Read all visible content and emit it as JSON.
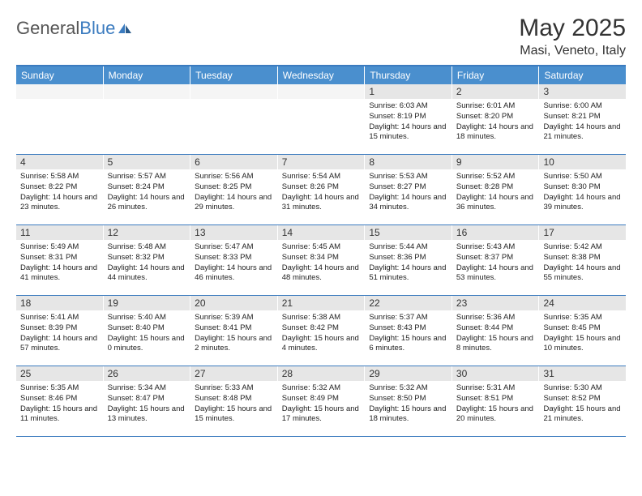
{
  "logo": {
    "part1": "General",
    "part2": "Blue"
  },
  "title": "May 2025",
  "location": "Masi, Veneto, Italy",
  "weekdays": [
    "Sunday",
    "Monday",
    "Tuesday",
    "Wednesday",
    "Thursday",
    "Friday",
    "Saturday"
  ],
  "colors": {
    "header_bg": "#4a8fce",
    "border": "#3b7bbf",
    "daynum_bg": "#e6e6e6"
  },
  "typography": {
    "title_fontsize": 30,
    "location_fontsize": 16,
    "weekday_fontsize": 12,
    "daynum_fontsize": 12,
    "detail_fontsize": 9.5
  },
  "weeks": [
    [
      {
        "day": "",
        "sunrise": "",
        "sunset": "",
        "daylight": ""
      },
      {
        "day": "",
        "sunrise": "",
        "sunset": "",
        "daylight": ""
      },
      {
        "day": "",
        "sunrise": "",
        "sunset": "",
        "daylight": ""
      },
      {
        "day": "",
        "sunrise": "",
        "sunset": "",
        "daylight": ""
      },
      {
        "day": "1",
        "sunrise": "Sunrise: 6:03 AM",
        "sunset": "Sunset: 8:19 PM",
        "daylight": "Daylight: 14 hours and 15 minutes."
      },
      {
        "day": "2",
        "sunrise": "Sunrise: 6:01 AM",
        "sunset": "Sunset: 8:20 PM",
        "daylight": "Daylight: 14 hours and 18 minutes."
      },
      {
        "day": "3",
        "sunrise": "Sunrise: 6:00 AM",
        "sunset": "Sunset: 8:21 PM",
        "daylight": "Daylight: 14 hours and 21 minutes."
      }
    ],
    [
      {
        "day": "4",
        "sunrise": "Sunrise: 5:58 AM",
        "sunset": "Sunset: 8:22 PM",
        "daylight": "Daylight: 14 hours and 23 minutes."
      },
      {
        "day": "5",
        "sunrise": "Sunrise: 5:57 AM",
        "sunset": "Sunset: 8:24 PM",
        "daylight": "Daylight: 14 hours and 26 minutes."
      },
      {
        "day": "6",
        "sunrise": "Sunrise: 5:56 AM",
        "sunset": "Sunset: 8:25 PM",
        "daylight": "Daylight: 14 hours and 29 minutes."
      },
      {
        "day": "7",
        "sunrise": "Sunrise: 5:54 AM",
        "sunset": "Sunset: 8:26 PM",
        "daylight": "Daylight: 14 hours and 31 minutes."
      },
      {
        "day": "8",
        "sunrise": "Sunrise: 5:53 AM",
        "sunset": "Sunset: 8:27 PM",
        "daylight": "Daylight: 14 hours and 34 minutes."
      },
      {
        "day": "9",
        "sunrise": "Sunrise: 5:52 AM",
        "sunset": "Sunset: 8:28 PM",
        "daylight": "Daylight: 14 hours and 36 minutes."
      },
      {
        "day": "10",
        "sunrise": "Sunrise: 5:50 AM",
        "sunset": "Sunset: 8:30 PM",
        "daylight": "Daylight: 14 hours and 39 minutes."
      }
    ],
    [
      {
        "day": "11",
        "sunrise": "Sunrise: 5:49 AM",
        "sunset": "Sunset: 8:31 PM",
        "daylight": "Daylight: 14 hours and 41 minutes."
      },
      {
        "day": "12",
        "sunrise": "Sunrise: 5:48 AM",
        "sunset": "Sunset: 8:32 PM",
        "daylight": "Daylight: 14 hours and 44 minutes."
      },
      {
        "day": "13",
        "sunrise": "Sunrise: 5:47 AM",
        "sunset": "Sunset: 8:33 PM",
        "daylight": "Daylight: 14 hours and 46 minutes."
      },
      {
        "day": "14",
        "sunrise": "Sunrise: 5:45 AM",
        "sunset": "Sunset: 8:34 PM",
        "daylight": "Daylight: 14 hours and 48 minutes."
      },
      {
        "day": "15",
        "sunrise": "Sunrise: 5:44 AM",
        "sunset": "Sunset: 8:36 PM",
        "daylight": "Daylight: 14 hours and 51 minutes."
      },
      {
        "day": "16",
        "sunrise": "Sunrise: 5:43 AM",
        "sunset": "Sunset: 8:37 PM",
        "daylight": "Daylight: 14 hours and 53 minutes."
      },
      {
        "day": "17",
        "sunrise": "Sunrise: 5:42 AM",
        "sunset": "Sunset: 8:38 PM",
        "daylight": "Daylight: 14 hours and 55 minutes."
      }
    ],
    [
      {
        "day": "18",
        "sunrise": "Sunrise: 5:41 AM",
        "sunset": "Sunset: 8:39 PM",
        "daylight": "Daylight: 14 hours and 57 minutes."
      },
      {
        "day": "19",
        "sunrise": "Sunrise: 5:40 AM",
        "sunset": "Sunset: 8:40 PM",
        "daylight": "Daylight: 15 hours and 0 minutes."
      },
      {
        "day": "20",
        "sunrise": "Sunrise: 5:39 AM",
        "sunset": "Sunset: 8:41 PM",
        "daylight": "Daylight: 15 hours and 2 minutes."
      },
      {
        "day": "21",
        "sunrise": "Sunrise: 5:38 AM",
        "sunset": "Sunset: 8:42 PM",
        "daylight": "Daylight: 15 hours and 4 minutes."
      },
      {
        "day": "22",
        "sunrise": "Sunrise: 5:37 AM",
        "sunset": "Sunset: 8:43 PM",
        "daylight": "Daylight: 15 hours and 6 minutes."
      },
      {
        "day": "23",
        "sunrise": "Sunrise: 5:36 AM",
        "sunset": "Sunset: 8:44 PM",
        "daylight": "Daylight: 15 hours and 8 minutes."
      },
      {
        "day": "24",
        "sunrise": "Sunrise: 5:35 AM",
        "sunset": "Sunset: 8:45 PM",
        "daylight": "Daylight: 15 hours and 10 minutes."
      }
    ],
    [
      {
        "day": "25",
        "sunrise": "Sunrise: 5:35 AM",
        "sunset": "Sunset: 8:46 PM",
        "daylight": "Daylight: 15 hours and 11 minutes."
      },
      {
        "day": "26",
        "sunrise": "Sunrise: 5:34 AM",
        "sunset": "Sunset: 8:47 PM",
        "daylight": "Daylight: 15 hours and 13 minutes."
      },
      {
        "day": "27",
        "sunrise": "Sunrise: 5:33 AM",
        "sunset": "Sunset: 8:48 PM",
        "daylight": "Daylight: 15 hours and 15 minutes."
      },
      {
        "day": "28",
        "sunrise": "Sunrise: 5:32 AM",
        "sunset": "Sunset: 8:49 PM",
        "daylight": "Daylight: 15 hours and 17 minutes."
      },
      {
        "day": "29",
        "sunrise": "Sunrise: 5:32 AM",
        "sunset": "Sunset: 8:50 PM",
        "daylight": "Daylight: 15 hours and 18 minutes."
      },
      {
        "day": "30",
        "sunrise": "Sunrise: 5:31 AM",
        "sunset": "Sunset: 8:51 PM",
        "daylight": "Daylight: 15 hours and 20 minutes."
      },
      {
        "day": "31",
        "sunrise": "Sunrise: 5:30 AM",
        "sunset": "Sunset: 8:52 PM",
        "daylight": "Daylight: 15 hours and 21 minutes."
      }
    ]
  ]
}
